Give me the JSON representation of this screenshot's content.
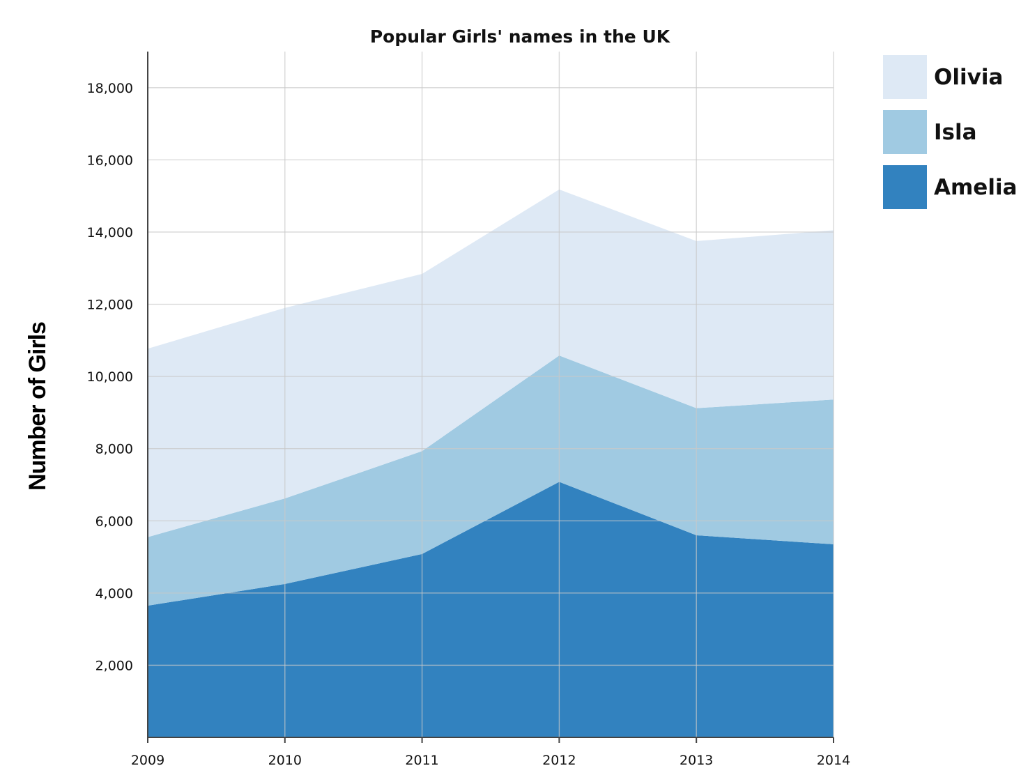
{
  "chart_data": {
    "type": "area",
    "stacked": true,
    "title": "Popular Girls' names in the UK",
    "xlabel": "",
    "ylabel": "Number of Girls",
    "x": [
      "2009",
      "2010",
      "2011",
      "2012",
      "2013",
      "2014"
    ],
    "ylim": [
      0,
      19000
    ],
    "yticks": [
      2000,
      4000,
      6000,
      8000,
      10000,
      12000,
      14000,
      16000,
      18000
    ],
    "ytick_labels": [
      "2,000",
      "4,000",
      "6,000",
      "8,000",
      "10,000",
      "12,000",
      "14,000",
      "16,000",
      "18,000"
    ],
    "grid": true,
    "legend_position": "right",
    "series": [
      {
        "name": "Amelia",
        "color": "#3282bf",
        "values": [
          3650,
          4250,
          5080,
          7080,
          5600,
          5350
        ]
      },
      {
        "name": "Isla",
        "color": "#a0cae2",
        "values": [
          1900,
          2370,
          2850,
          3500,
          3520,
          4010
        ]
      },
      {
        "name": "Olivia",
        "color": "#dee9f5",
        "values": [
          5220,
          5280,
          4910,
          4600,
          4630,
          4690
        ]
      }
    ],
    "legend_order": [
      "Olivia",
      "Isla",
      "Amelia"
    ]
  }
}
